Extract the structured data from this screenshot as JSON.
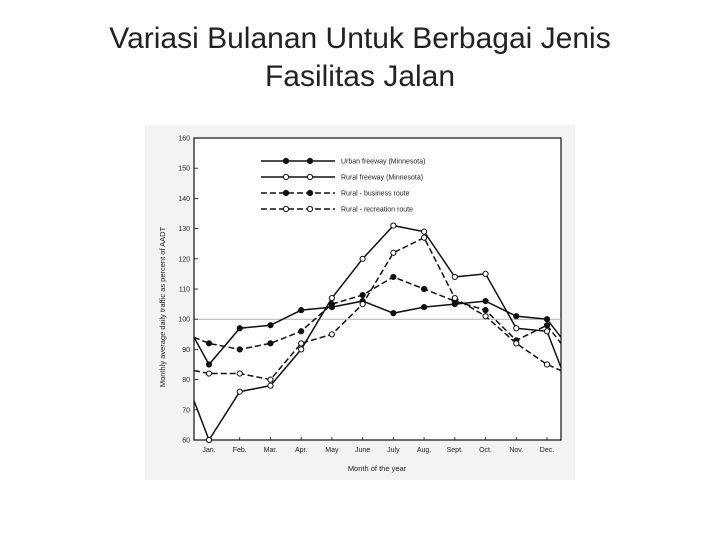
{
  "slide": {
    "title_line1": "Variasi Bulanan Untuk Berbagai Jenis",
    "title_line2": "Fasilitas Jalan"
  },
  "chart_data": {
    "type": "line",
    "title": "",
    "xlabel": "Month of the year",
    "ylabel": "Monthly average daily traffic as percent of AADT",
    "categories": [
      "Jan.",
      "Feb.",
      "Mar.",
      "Apr.",
      "May",
      "June",
      "July",
      "Aug.",
      "Sept.",
      "Oct.",
      "Nov.",
      "Dec."
    ],
    "ylim": [
      60,
      160
    ],
    "yticks": [
      60,
      70,
      80,
      90,
      100,
      110,
      120,
      130,
      140,
      150,
      160
    ],
    "reference_line": 100,
    "legend_position": "top-center",
    "series": [
      {
        "name": "Urban freeway (Minnesota)",
        "style": "solid",
        "marker": "filled",
        "values": [
          85,
          97,
          98,
          103,
          104,
          106,
          102,
          104,
          105,
          106,
          101,
          100
        ],
        "lead_in": 94,
        "lead_out": 94
      },
      {
        "name": "Rural freeway (Minnesota)",
        "style": "solid",
        "marker": "open",
        "values": [
          60,
          76,
          78,
          90,
          107,
          120,
          131,
          129,
          114,
          115,
          97,
          96
        ],
        "lead_in": 73,
        "lead_out": 84
      },
      {
        "name": "Rural - business route",
        "style": "dashed",
        "marker": "filled",
        "values": [
          92,
          90,
          92,
          96,
          105,
          108,
          114,
          110,
          106,
          103,
          93,
          98
        ],
        "lead_in": 94,
        "lead_out": 92
      },
      {
        "name": "Rural - recreation route",
        "style": "dashed",
        "marker": "open",
        "values": [
          82,
          82,
          80,
          92,
          95,
          105,
          122,
          127,
          107,
          101,
          92,
          85
        ],
        "lead_in": 83,
        "lead_out": 83
      }
    ]
  }
}
